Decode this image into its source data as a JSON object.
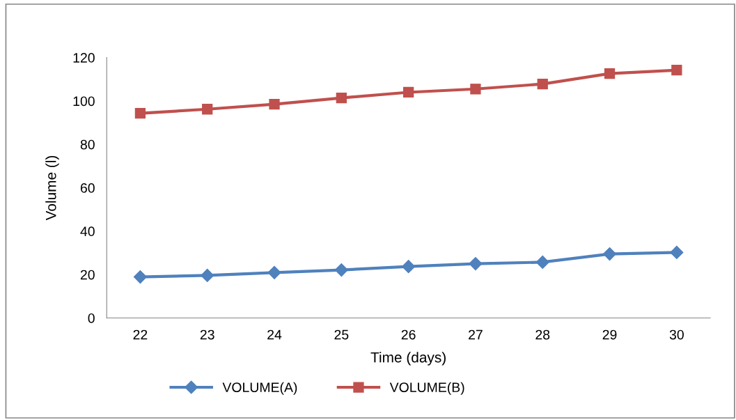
{
  "chart_data": {
    "type": "line",
    "xlabel": "Time (days)",
    "ylabel": "Volume (l)",
    "categories": [
      "22",
      "23",
      "24",
      "25",
      "26",
      "27",
      "28",
      "29",
      "30"
    ],
    "series": [
      {
        "name": "VOLUME(A)",
        "color": "#4f81bd",
        "marker": "diamond",
        "values": [
          18.9,
          19.6,
          20.9,
          22.1,
          23.7,
          25.0,
          25.7,
          29.5,
          30.2
        ]
      },
      {
        "name": "VOLUME(B)",
        "color": "#c0504d",
        "marker": "square",
        "values": [
          94.3,
          96.2,
          98.5,
          101.4,
          104.0,
          105.5,
          107.8,
          112.6,
          114.2
        ]
      }
    ],
    "ylim": [
      0,
      120
    ],
    "yticks": [
      0,
      20,
      40,
      60,
      80,
      100,
      120
    ],
    "grid": false,
    "legend": "bottom",
    "line_style": "solid"
  }
}
